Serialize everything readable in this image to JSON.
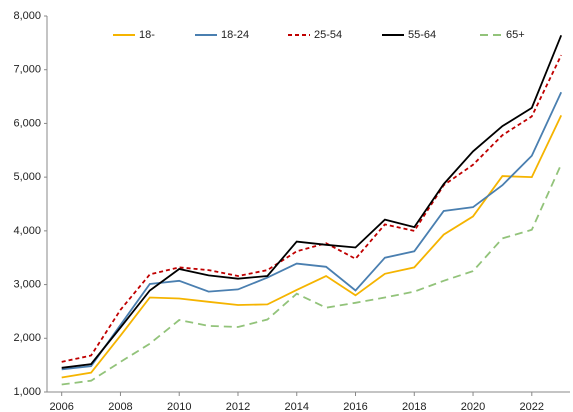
{
  "chart_data": {
    "type": "line",
    "x": [
      2006,
      2007,
      2008,
      2009,
      2010,
      2011,
      2012,
      2013,
      2014,
      2015,
      2016,
      2017,
      2018,
      2019,
      2020,
      2021,
      2022,
      2023
    ],
    "xlim": [
      2005.5,
      2023.3
    ],
    "xticks": [
      2006,
      2008,
      2010,
      2012,
      2014,
      2016,
      2018,
      2020,
      2022
    ],
    "ylim": [
      1000,
      8000
    ],
    "yticks": [
      {
        "value": 1000,
        "label": "1,000"
      },
      {
        "value": 2000,
        "label": "2,000"
      },
      {
        "value": 3000,
        "label": "3,000"
      },
      {
        "value": 4000,
        "label": "4,000"
      },
      {
        "value": 5000,
        "label": "5,000"
      },
      {
        "value": 6000,
        "label": "6,000"
      },
      {
        "value": 7000,
        "label": "7,000"
      },
      {
        "value": 8000,
        "label": "8,000"
      }
    ],
    "grid": false,
    "legend": "top",
    "series": [
      {
        "name": "18-",
        "color": "#f5b400",
        "dashed": false,
        "values": [
          1270,
          1360,
          2050,
          2760,
          2740,
          2680,
          2620,
          2630,
          2900,
          3160,
          2800,
          3200,
          3320,
          3930,
          4270,
          5020,
          5000,
          6150
        ]
      },
      {
        "name": "18-24",
        "color": "#4a7fb0",
        "dashed": false,
        "values": [
          1420,
          1480,
          2250,
          3010,
          3070,
          2870,
          2910,
          3130,
          3390,
          3330,
          2890,
          3500,
          3620,
          4370,
          4440,
          4850,
          5400,
          6580
        ]
      },
      {
        "name": "25-54",
        "color": "#c00000",
        "dashed": true,
        "values": [
          1560,
          1680,
          2530,
          3190,
          3320,
          3270,
          3160,
          3270,
          3620,
          3770,
          3480,
          4120,
          4000,
          4850,
          5230,
          5780,
          6130,
          7270
        ]
      },
      {
        "name": "55-64",
        "color": "#000000",
        "dashed": false,
        "values": [
          1450,
          1520,
          2200,
          2890,
          3290,
          3170,
          3110,
          3160,
          3800,
          3740,
          3690,
          4210,
          4070,
          4870,
          5480,
          5950,
          6290,
          7640
        ]
      },
      {
        "name": "65+",
        "color": "#92c37a",
        "dashed": true,
        "values": [
          1140,
          1210,
          1560,
          1900,
          2340,
          2230,
          2210,
          2350,
          2830,
          2570,
          2660,
          2760,
          2870,
          3070,
          3250,
          3860,
          4020,
          5240
        ]
      }
    ]
  }
}
